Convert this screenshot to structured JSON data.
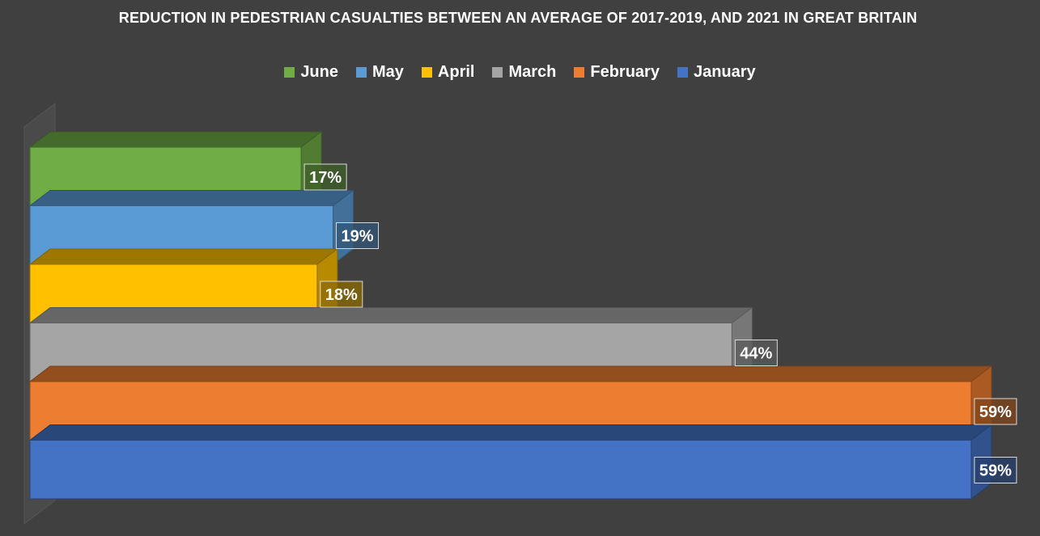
{
  "chart_data": {
    "type": "bar",
    "orientation": "horizontal",
    "three_d": true,
    "title": "REDUCTION IN PEDESTRIAN CASUALTIES BETWEEN AN AVERAGE OF 2017-2019, AND 2021 IN GREAT BRITAIN",
    "categories": [
      "June",
      "May",
      "April",
      "March",
      "February",
      "January"
    ],
    "values": [
      17,
      19,
      18,
      44,
      59,
      59
    ],
    "value_labels": [
      "17%",
      "19%",
      "18%",
      "44%",
      "59%",
      "59%"
    ],
    "unit": "%",
    "colors": [
      "#70ad47",
      "#5b9bd5",
      "#ffc000",
      "#a5a5a5",
      "#ed7d31",
      "#4472c4"
    ],
    "xlim": [
      0,
      59
    ],
    "grid": false,
    "legend_position": "top",
    "legend": [
      {
        "label": "June",
        "color": "#70ad47"
      },
      {
        "label": "May",
        "color": "#5b9bd5"
      },
      {
        "label": "April",
        "color": "#ffc000"
      },
      {
        "label": "March",
        "color": "#a5a5a5"
      },
      {
        "label": "February",
        "color": "#ed7d31"
      },
      {
        "label": "January",
        "color": "#4472c4"
      }
    ]
  }
}
